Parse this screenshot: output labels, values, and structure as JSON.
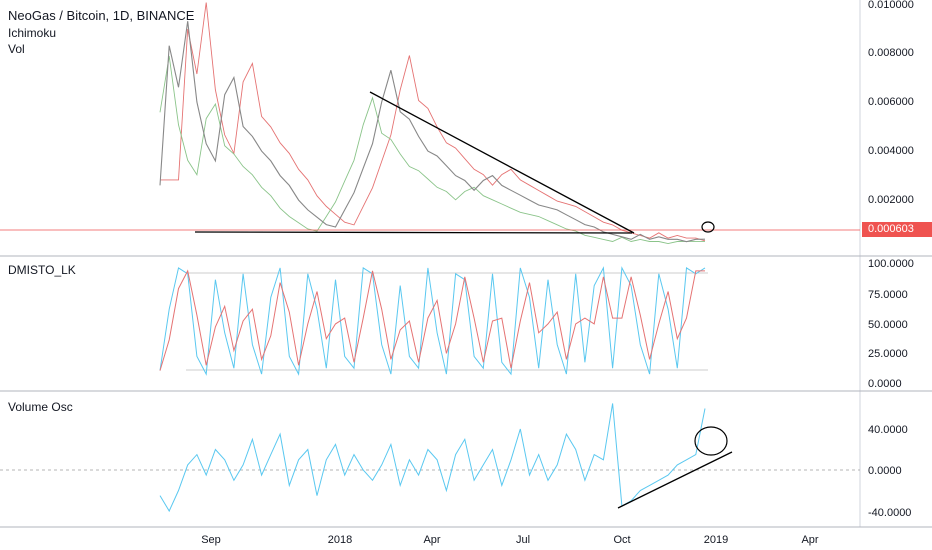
{
  "header": {
    "title": "NeoGas / Bitcoin, 1D, BINANCE",
    "ind1": "Ichimoku",
    "ind2": "Vol"
  },
  "last_price": "0.000603",
  "colors": {
    "price": "#888888",
    "ichimoku_a": "#8bc48a",
    "ichimoku_b": "#e57373",
    "osc_k": "#5ac8f0",
    "osc_d": "#e57373",
    "trend": "#000000",
    "last_price": "#ef5350"
  },
  "chart_data": [
    {
      "type": "line",
      "title": "NeoGas / Bitcoin, 1D, BINANCE",
      "xlabel": "",
      "ylabel": "",
      "x_ticks": [
        "Sep",
        "2018",
        "Apr",
        "Jul",
        "Oct",
        "2019",
        "Apr"
      ],
      "y_ticks": [
        "0.010000",
        "0.008000",
        "0.006000",
        "0.004000",
        "0.002000"
      ],
      "ylim": [
        0,
        0.0102
      ],
      "series": [
        {
          "values": [
            0.0028,
            0.0085,
            0.0068,
            0.0095,
            0.0062,
            0.0045,
            0.0038,
            0.0065,
            0.0072,
            0.0052,
            0.0048,
            0.0042,
            0.0038,
            0.0032,
            0.0028,
            0.0022,
            0.0018,
            0.0015,
            0.0012,
            0.0011,
            0.0018,
            0.0025,
            0.0035,
            0.0045,
            0.0062,
            0.0075,
            0.0058,
            0.0055,
            0.0048,
            0.0042,
            0.004,
            0.0036,
            0.0032,
            0.003,
            0.0026,
            0.003,
            0.0032,
            0.0028,
            0.0026,
            0.0024,
            0.0022,
            0.002,
            0.0019,
            0.0018,
            0.0016,
            0.0014,
            0.0012,
            0.0011,
            0.0009,
            0.0008,
            0.0007,
            0.0006,
            0.0008,
            0.0006,
            0.0007,
            0.0006,
            0.0006,
            0.0005,
            0.0006,
            0.000603
          ]
        }
      ]
    },
    {
      "type": "line",
      "title": "DMISTO_LK",
      "y_ticks": [
        "100.0000",
        "75.0000",
        "50.0000",
        "25.0000",
        "0.0000"
      ],
      "ylim": [
        0,
        100
      ],
      "series": [
        {
          "values": [
            8,
            60,
            95,
            90,
            20,
            5,
            85,
            40,
            10,
            90,
            30,
            5,
            70,
            95,
            20,
            5,
            90,
            60,
            10,
            85,
            20,
            10,
            95,
            90,
            30,
            5,
            80,
            20,
            10,
            95,
            40,
            5,
            90,
            85,
            20,
            10,
            90,
            15,
            5,
            95,
            70,
            10,
            85,
            30,
            5,
            90,
            15,
            80,
            95,
            10,
            95,
            80,
            30,
            5,
            90,
            60,
            10,
            95,
            90,
            95
          ]
        }
      ]
    },
    {
      "type": "line",
      "title": "Volume Osc",
      "x_ticks": [
        "Sep",
        "2018",
        "Apr",
        "Jul",
        "Oct",
        "2019",
        "Apr"
      ],
      "y_ticks": [
        "40.0000",
        "0.0000",
        "-40.0000"
      ],
      "ylim": [
        -45,
        65
      ],
      "series": [
        {
          "values": [
            -25,
            -40,
            -20,
            5,
            15,
            -5,
            20,
            10,
            -10,
            5,
            30,
            -5,
            15,
            35,
            -15,
            10,
            20,
            -25,
            10,
            25,
            -5,
            15,
            0,
            -10,
            5,
            25,
            -15,
            10,
            -5,
            20,
            10,
            -20,
            15,
            30,
            -10,
            5,
            20,
            -15,
            10,
            40,
            -5,
            15,
            -10,
            5,
            35,
            20,
            -10,
            15,
            10,
            65,
            -35,
            -30,
            -20,
            -15,
            -10,
            -5,
            5,
            10,
            15,
            60
          ]
        }
      ]
    }
  ]
}
